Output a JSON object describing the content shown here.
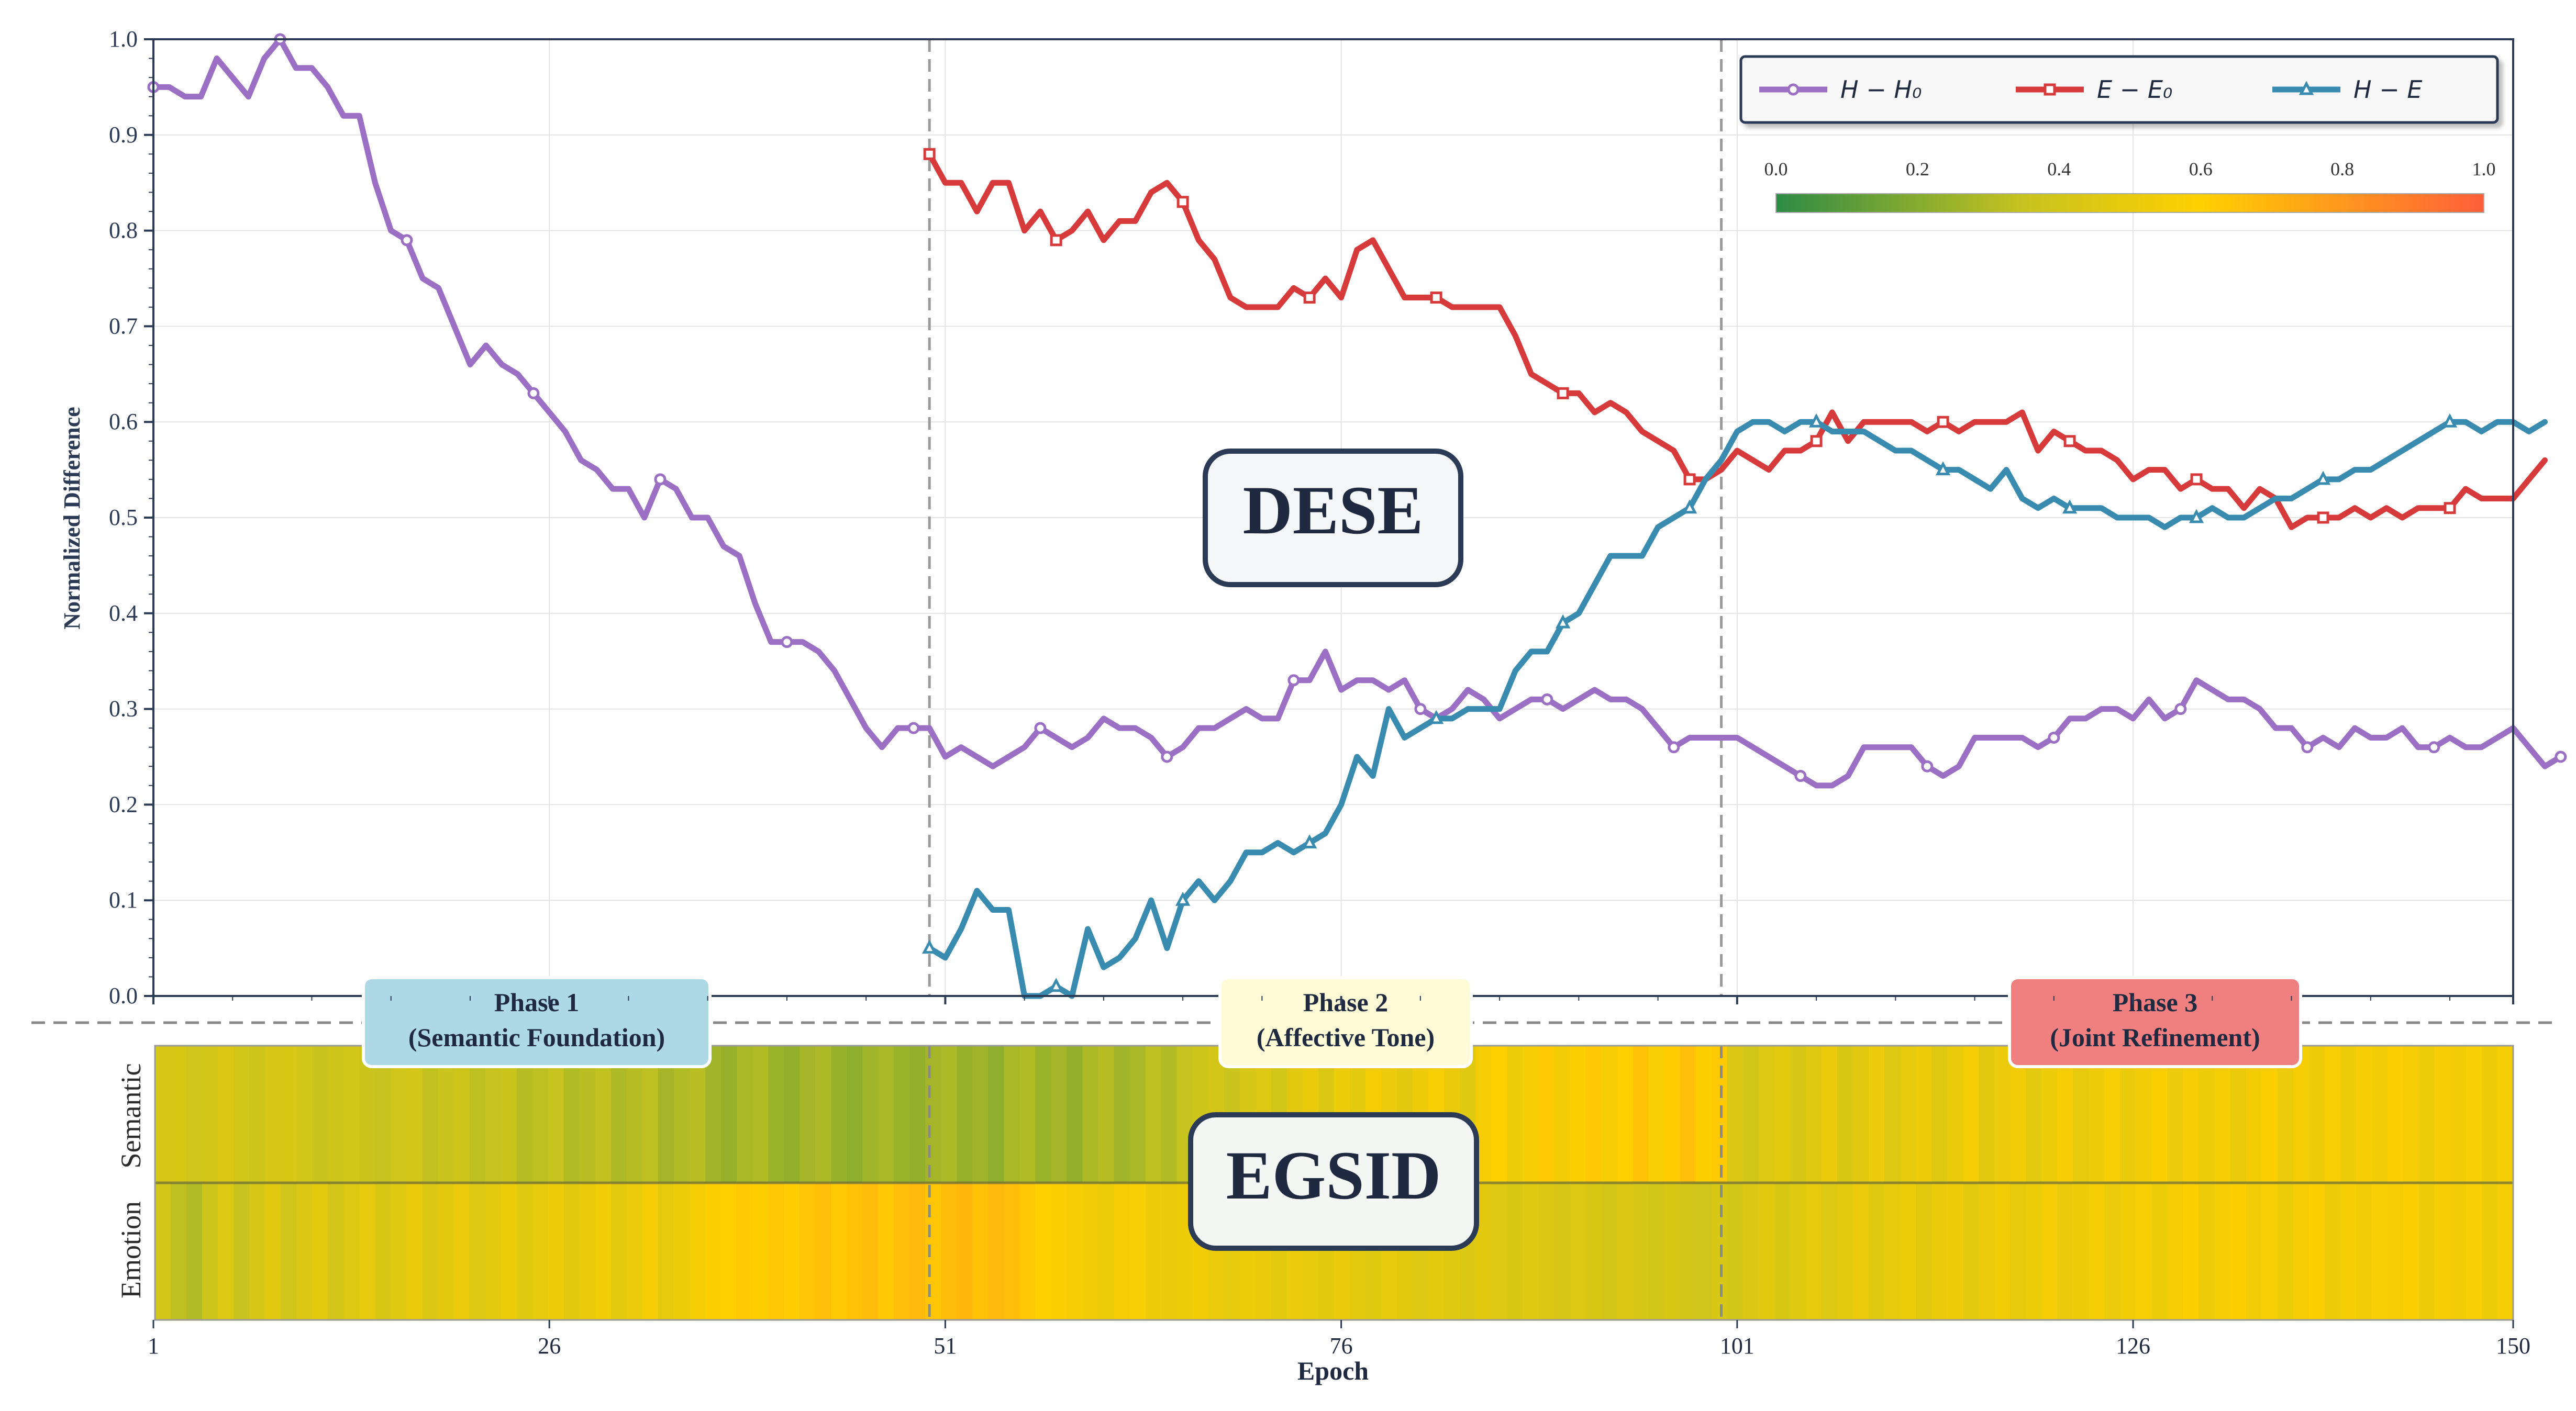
{
  "chart_data": {
    "type": "line",
    "top_panel": {
      "ylabel": "Normalized Difference",
      "ylim": [
        0,
        1
      ],
      "yticks": [
        "0.0",
        "0.1",
        "0.2",
        "0.3",
        "0.4",
        "0.5",
        "0.6",
        "0.7",
        "0.8",
        "0.9",
        "1.0"
      ],
      "center_label": "DESE",
      "phase_boundaries": [
        50,
        100
      ],
      "legend": {
        "entries": [
          "H − H₀",
          "E − E₀",
          "H − E"
        ],
        "colorbar_ticks": [
          "0.0",
          "0.2",
          "0.4",
          "0.6",
          "0.8",
          "1.0"
        ]
      },
      "series": [
        {
          "name": "H − H₀",
          "color": "#9b6fc4",
          "marker": "circle",
          "x_start": 1,
          "values": [
            0.95,
            0.95,
            0.94,
            0.94,
            0.98,
            0.96,
            0.94,
            0.98,
            1.0,
            0.97,
            0.97,
            0.95,
            0.92,
            0.92,
            0.85,
            0.8,
            0.79,
            0.75,
            0.74,
            0.7,
            0.66,
            0.68,
            0.66,
            0.65,
            0.63,
            0.61,
            0.59,
            0.56,
            0.55,
            0.53,
            0.53,
            0.5,
            0.54,
            0.53,
            0.5,
            0.5,
            0.47,
            0.46,
            0.41,
            0.37,
            0.37,
            0.37,
            0.36,
            0.34,
            0.31,
            0.28,
            0.26,
            0.28,
            0.28,
            0.28,
            0.25,
            0.26,
            0.25,
            0.24,
            0.25,
            0.26,
            0.28,
            0.27,
            0.26,
            0.27,
            0.29,
            0.28,
            0.28,
            0.27,
            0.25,
            0.26,
            0.28,
            0.28,
            0.29,
            0.3,
            0.29,
            0.29,
            0.33,
            0.33,
            0.36,
            0.32,
            0.33,
            0.33,
            0.32,
            0.33,
            0.3,
            0.29,
            0.3,
            0.32,
            0.31,
            0.29,
            0.3,
            0.31,
            0.31,
            0.3,
            0.31,
            0.32,
            0.31,
            0.31,
            0.3,
            0.28,
            0.26,
            0.27,
            0.27,
            0.27,
            0.27,
            0.26,
            0.25,
            0.24,
            0.23,
            0.22,
            0.22,
            0.23,
            0.26,
            0.26,
            0.26,
            0.26,
            0.24,
            0.23,
            0.24,
            0.27,
            0.27,
            0.27,
            0.27,
            0.26,
            0.27,
            0.29,
            0.29,
            0.3,
            0.3,
            0.29,
            0.31,
            0.29,
            0.3,
            0.33,
            0.32,
            0.31,
            0.31,
            0.3,
            0.28,
            0.28,
            0.26,
            0.27,
            0.26,
            0.28,
            0.27,
            0.27,
            0.28,
            0.26,
            0.26,
            0.27,
            0.26,
            0.26,
            0.27,
            0.28,
            0.26,
            0.24,
            0.25
          ]
        },
        {
          "name": "E − E₀",
          "color": "#d63a3a",
          "marker": "square",
          "x_start": 50,
          "values": [
            0.88,
            0.85,
            0.85,
            0.82,
            0.85,
            0.85,
            0.8,
            0.82,
            0.79,
            0.8,
            0.82,
            0.79,
            0.81,
            0.81,
            0.84,
            0.85,
            0.83,
            0.79,
            0.77,
            0.73,
            0.72,
            0.72,
            0.72,
            0.74,
            0.73,
            0.75,
            0.73,
            0.78,
            0.79,
            0.76,
            0.73,
            0.73,
            0.73,
            0.72,
            0.72,
            0.72,
            0.72,
            0.69,
            0.65,
            0.64,
            0.63,
            0.63,
            0.61,
            0.62,
            0.61,
            0.59,
            0.58,
            0.57,
            0.54,
            0.54,
            0.55,
            0.57,
            0.56,
            0.55,
            0.57,
            0.57,
            0.58,
            0.61,
            0.58,
            0.6,
            0.6,
            0.6,
            0.6,
            0.59,
            0.6,
            0.59,
            0.6,
            0.6,
            0.6,
            0.61,
            0.57,
            0.59,
            0.58,
            0.57,
            0.57,
            0.56,
            0.54,
            0.55,
            0.55,
            0.53,
            0.54,
            0.53,
            0.53,
            0.51,
            0.53,
            0.52,
            0.49,
            0.5,
            0.5,
            0.5,
            0.51,
            0.5,
            0.51,
            0.5,
            0.51,
            0.51,
            0.51,
            0.53,
            0.52,
            0.52,
            0.52,
            0.54,
            0.56
          ]
        },
        {
          "name": "H − E",
          "color": "#3a8bb0",
          "marker": "triangle",
          "x_start": 50,
          "values": [
            0.05,
            0.04,
            0.07,
            0.11,
            0.09,
            0.09,
            0.0,
            0.0,
            0.01,
            0.0,
            0.07,
            0.03,
            0.04,
            0.06,
            0.1,
            0.05,
            0.1,
            0.12,
            0.1,
            0.12,
            0.15,
            0.15,
            0.16,
            0.15,
            0.16,
            0.17,
            0.2,
            0.25,
            0.23,
            0.3,
            0.27,
            0.28,
            0.29,
            0.29,
            0.3,
            0.3,
            0.3,
            0.34,
            0.36,
            0.36,
            0.39,
            0.4,
            0.43,
            0.46,
            0.46,
            0.46,
            0.49,
            0.5,
            0.51,
            0.54,
            0.56,
            0.59,
            0.6,
            0.6,
            0.59,
            0.6,
            0.6,
            0.59,
            0.59,
            0.59,
            0.58,
            0.57,
            0.57,
            0.56,
            0.55,
            0.55,
            0.54,
            0.53,
            0.55,
            0.52,
            0.51,
            0.52,
            0.51,
            0.51,
            0.51,
            0.5,
            0.5,
            0.5,
            0.49,
            0.5,
            0.5,
            0.51,
            0.5,
            0.5,
            0.51,
            0.52,
            0.52,
            0.53,
            0.54,
            0.54,
            0.55,
            0.55,
            0.56,
            0.57,
            0.58,
            0.59,
            0.6,
            0.6,
            0.59,
            0.6,
            0.6,
            0.59,
            0.6
          ]
        }
      ]
    },
    "bottom_panel": {
      "type": "heatmap",
      "center_label": "EGSID",
      "rows": [
        "Semantic",
        "Emotion"
      ],
      "colorscale": [
        "#2e8b45",
        "#c7c31f",
        "#ffd000",
        "#ff5f3a"
      ],
      "xlabel": "Epoch",
      "xticks": [
        1,
        26,
        51,
        76,
        101,
        126,
        150
      ],
      "xlim": [
        1,
        150
      ],
      "phases": [
        {
          "title": "Phase 1",
          "subtitle": "(Semantic Foundation)",
          "color": "#add8e6"
        },
        {
          "title": "Phase 2",
          "subtitle": "(Affective Tone)",
          "color": "#fffbd6"
        },
        {
          "title": "Phase 3",
          "subtitle": "(Joint Refinement)",
          "color": "#f08080"
        }
      ],
      "semantic_values": [
        0.42,
        0.43,
        0.39,
        0.41,
        0.44,
        0.4,
        0.38,
        0.42,
        0.43,
        0.4,
        0.36,
        0.38,
        0.4,
        0.37,
        0.35,
        0.39,
        0.41,
        0.34,
        0.36,
        0.38,
        0.33,
        0.35,
        0.37,
        0.31,
        0.33,
        0.35,
        0.3,
        0.32,
        0.34,
        0.29,
        0.31,
        0.33,
        0.27,
        0.3,
        0.32,
        0.26,
        0.24,
        0.28,
        0.3,
        0.25,
        0.23,
        0.27,
        0.29,
        0.24,
        0.22,
        0.26,
        0.28,
        0.25,
        0.23,
        0.27,
        0.29,
        0.24,
        0.26,
        0.22,
        0.28,
        0.3,
        0.25,
        0.27,
        0.23,
        0.29,
        0.31,
        0.26,
        0.28,
        0.33,
        0.3,
        0.35,
        0.38,
        0.41,
        0.36,
        0.42,
        0.45,
        0.4,
        0.47,
        0.5,
        0.44,
        0.52,
        0.48,
        0.55,
        0.51,
        0.47,
        0.53,
        0.57,
        0.5,
        0.46,
        0.55,
        0.6,
        0.52,
        0.56,
        0.62,
        0.54,
        0.58,
        0.63,
        0.56,
        0.6,
        0.65,
        0.57,
        0.61,
        0.66,
        0.59,
        0.62,
        0.44,
        0.4,
        0.45,
        0.48,
        0.42,
        0.46,
        0.5,
        0.43,
        0.47,
        0.52,
        0.45,
        0.49,
        0.53,
        0.46,
        0.5,
        0.55,
        0.47,
        0.51,
        0.54,
        0.48,
        0.52,
        0.56,
        0.49,
        0.53,
        0.57,
        0.5,
        0.54,
        0.58,
        0.51,
        0.55,
        0.52,
        0.56,
        0.5,
        0.54,
        0.58,
        0.51,
        0.55,
        0.53,
        0.57,
        0.52,
        0.56,
        0.54,
        0.58,
        0.55,
        0.52,
        0.56,
        0.54,
        0.57,
        0.53,
        0.55
      ],
      "emotion_values": [
        0.4,
        0.33,
        0.3,
        0.38,
        0.45,
        0.35,
        0.42,
        0.47,
        0.39,
        0.44,
        0.48,
        0.41,
        0.45,
        0.49,
        0.43,
        0.46,
        0.5,
        0.44,
        0.47,
        0.51,
        0.45,
        0.48,
        0.52,
        0.46,
        0.49,
        0.53,
        0.47,
        0.5,
        0.54,
        0.48,
        0.51,
        0.55,
        0.49,
        0.52,
        0.56,
        0.58,
        0.6,
        0.62,
        0.59,
        0.63,
        0.61,
        0.64,
        0.66,
        0.62,
        0.65,
        0.67,
        0.63,
        0.66,
        0.68,
        0.64,
        0.67,
        0.69,
        0.65,
        0.68,
        0.66,
        0.63,
        0.6,
        0.58,
        0.56,
        0.54,
        0.52,
        0.55,
        0.57,
        0.53,
        0.5,
        0.52,
        0.54,
        0.51,
        0.49,
        0.52,
        0.5,
        0.48,
        0.51,
        0.49,
        0.47,
        0.5,
        0.48,
        0.46,
        0.49,
        0.47,
        0.45,
        0.48,
        0.46,
        0.44,
        0.47,
        0.45,
        0.43,
        0.46,
        0.44,
        0.42,
        0.45,
        0.43,
        0.41,
        0.44,
        0.42,
        0.4,
        0.43,
        0.41,
        0.39,
        0.42,
        0.4,
        0.44,
        0.47,
        0.43,
        0.46,
        0.49,
        0.45,
        0.48,
        0.51,
        0.46,
        0.49,
        0.52,
        0.47,
        0.5,
        0.53,
        0.48,
        0.51,
        0.54,
        0.49,
        0.52,
        0.55,
        0.5,
        0.53,
        0.56,
        0.51,
        0.54,
        0.57,
        0.52,
        0.55,
        0.58,
        0.53,
        0.56,
        0.59,
        0.54,
        0.57,
        0.52,
        0.55,
        0.58,
        0.53,
        0.56,
        0.54,
        0.57,
        0.55,
        0.58,
        0.53,
        0.56,
        0.54,
        0.57,
        0.52,
        0.55
      ]
    }
  }
}
